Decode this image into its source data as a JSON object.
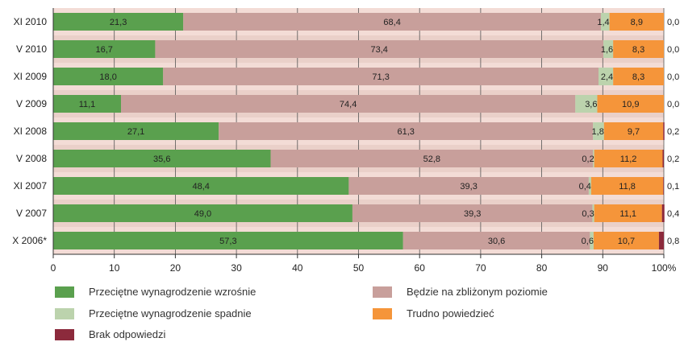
{
  "chart_data": {
    "type": "bar",
    "stacked": true,
    "orientation": "horizontal",
    "categories": [
      "XI 2010",
      "V 2010",
      "XI 2009",
      "V 2009",
      "XI 2008",
      "V 2008",
      "XI 2007",
      "V 2007",
      "X 2006*"
    ],
    "series": [
      {
        "name": "Przeciętne wynagrodzenie wzrośnie",
        "color": "#5aa04e",
        "values": [
          21.3,
          16.7,
          18.0,
          11.1,
          27.1,
          35.6,
          48.4,
          49.0,
          57.3
        ],
        "labels": [
          "21,3",
          "16,7",
          "18,0",
          "11,1",
          "27,1",
          "35,6",
          "48,4",
          "49,0",
          "57,3"
        ]
      },
      {
        "name": "Będzie na zbliżonym poziomie",
        "color": "#c89f9b",
        "values": [
          68.4,
          73.4,
          71.3,
          74.4,
          61.3,
          52.8,
          39.3,
          39.3,
          30.6
        ],
        "labels": [
          "68,4",
          "73,4",
          "71,3",
          "74,4",
          "61,3",
          "52,8",
          "39,3",
          "39,3",
          "30,6"
        ]
      },
      {
        "name": "Przeciętne wynagrodzenie spadnie",
        "color": "#bcd3ad",
        "values": [
          1.4,
          1.6,
          2.4,
          3.6,
          1.8,
          0.2,
          0.4,
          0.3,
          0.6
        ],
        "labels": [
          "1,4",
          "1,6",
          "2,4",
          "3,6",
          "1,8",
          "0,2",
          "0,4",
          "0,3",
          "0,6"
        ]
      },
      {
        "name": "Trudno powiedzieć",
        "color": "#f5953a",
        "values": [
          8.9,
          8.3,
          8.3,
          10.9,
          9.7,
          11.2,
          11.8,
          11.1,
          10.7
        ],
        "labels": [
          "8,9",
          "8,3",
          "8,3",
          "10,9",
          "9,7",
          "11,2",
          "11,8",
          "11,1",
          "10,7"
        ]
      },
      {
        "name": "Brak odpowiedzi",
        "color": "#8c2a3c",
        "values": [
          0.0,
          0.0,
          0.0,
          0.0,
          0.2,
          0.2,
          0.1,
          0.4,
          0.8
        ],
        "labels": [
          "0,0",
          "0,0",
          "0,0",
          "0,0",
          "0,2",
          "0,2",
          "0,1",
          "0,4",
          "0,8"
        ]
      }
    ],
    "xlim": [
      0,
      100
    ],
    "xticks": [
      "0",
      "10",
      "20",
      "30",
      "40",
      "50",
      "60",
      "70",
      "80",
      "90",
      "100%"
    ],
    "grid": true,
    "legend_position": "bottom"
  }
}
